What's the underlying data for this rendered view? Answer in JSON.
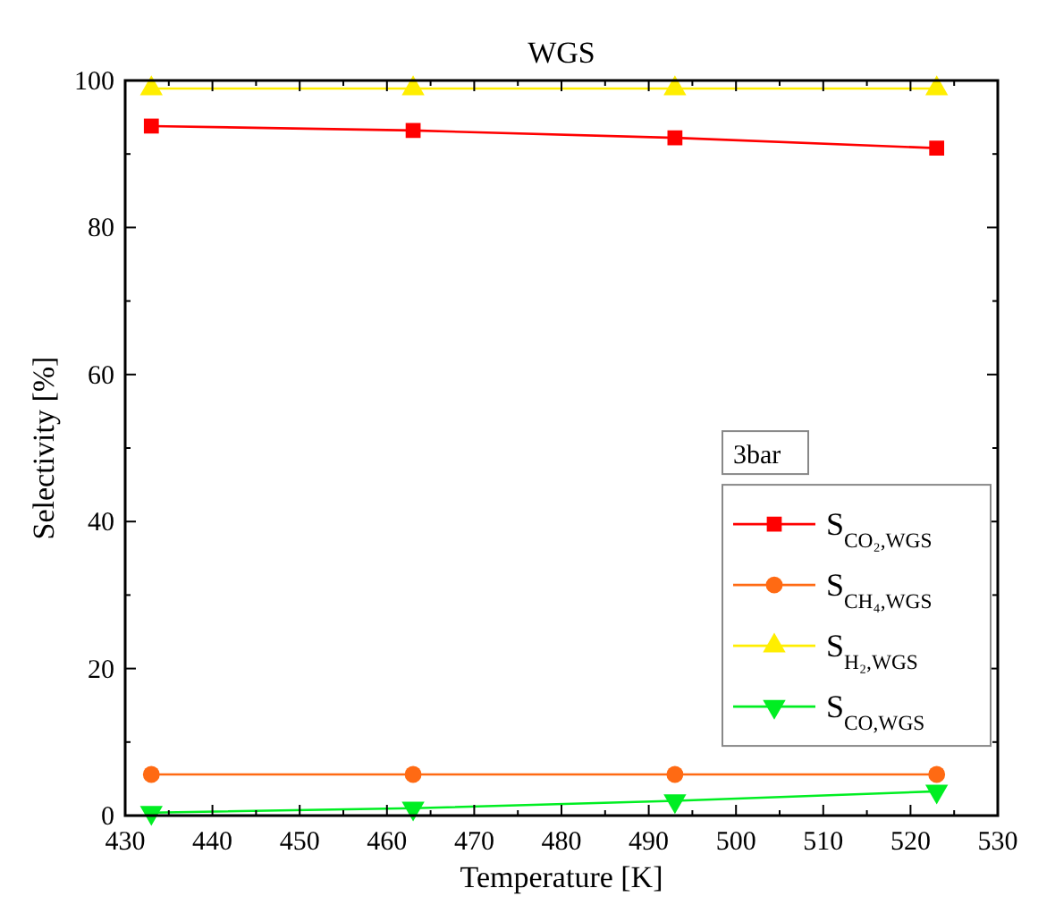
{
  "chart_data": {
    "type": "line",
    "title": "WGS",
    "xlabel": "Temperature [K]",
    "ylabel": "Selectivity [%]",
    "legend_title": "3bar",
    "legend": "right",
    "grid": false,
    "x": [
      433,
      463,
      493,
      523
    ],
    "xlim": [
      430,
      530
    ],
    "xticks": [
      430,
      440,
      450,
      460,
      470,
      480,
      490,
      500,
      510,
      520,
      530
    ],
    "ylim": [
      0,
      100
    ],
    "yticks": [
      0,
      20,
      40,
      60,
      80,
      100
    ],
    "series": [
      {
        "name": "S$_{CO₂,WGS}$",
        "color": "#ff0000",
        "marker": "square",
        "values": [
          93.8,
          93.2,
          92.2,
          90.8
        ]
      },
      {
        "name": "S$_{CH₄,WGS}$",
        "color": "#ff6a13",
        "marker": "circle",
        "values": [
          5.6,
          5.6,
          5.6,
          5.6
        ]
      },
      {
        "name": "S$_{H₂,WGS}$",
        "color": "#ffee00",
        "marker": "triangle",
        "values": [
          98.9,
          98.9,
          98.9,
          98.9
        ]
      },
      {
        "name": "S$_{CO,WGS}$",
        "color": "#00ee22",
        "marker": "triangle-down",
        "values": [
          0.4,
          1.0,
          2.0,
          3.3
        ]
      }
    ]
  }
}
